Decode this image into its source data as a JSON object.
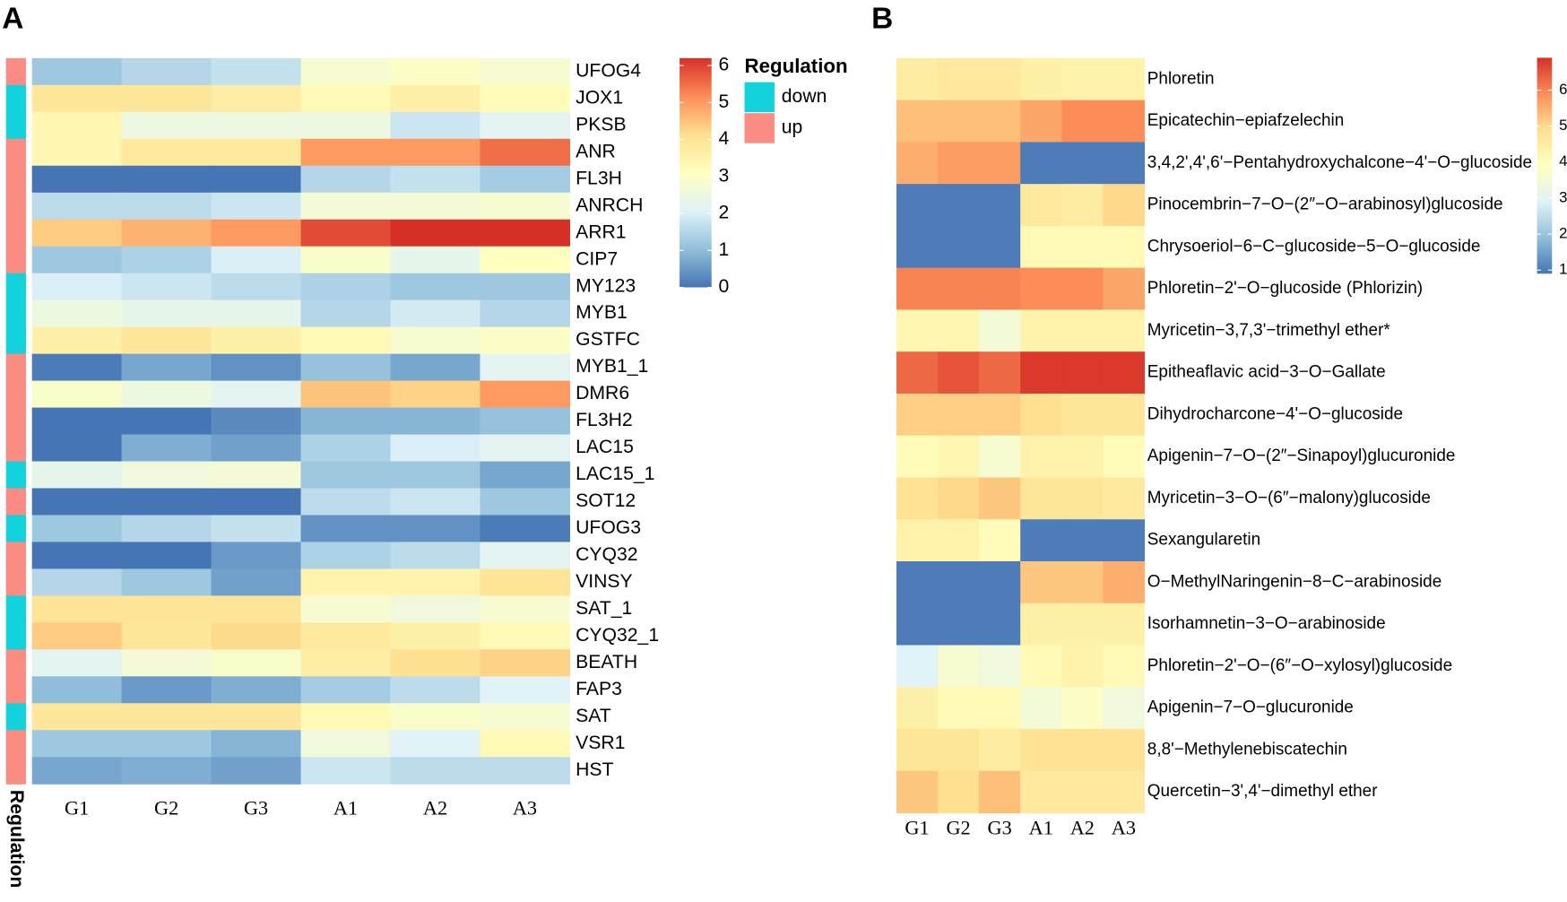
{
  "chart_data": [
    {
      "type": "heatmap",
      "panel": "A",
      "columns": [
        "G1",
        "G2",
        "G3",
        "A1",
        "A2",
        "A3"
      ],
      "rows": [
        "UFOG4",
        "JOX1",
        "PKSB",
        "ANR",
        "FL3H",
        "ANRCH",
        "ARR1",
        "CIP7",
        "MY123",
        "MYB1",
        "GSTFC",
        "MYB1_1",
        "DMR6",
        "FL3H2",
        "LAC15",
        "LAC15_1",
        "SOT12",
        "UFOG3",
        "CYQ32",
        "VINSY",
        "SAT_1",
        "CYQ32_1",
        "BEATH",
        "FAP3",
        "SAT",
        "VSR1",
        "HST"
      ],
      "values": [
        [
          1.2,
          1.5,
          1.7,
          2.8,
          3.0,
          2.8
        ],
        [
          3.9,
          3.9,
          3.7,
          3.3,
          3.6,
          3.2
        ],
        [
          3.4,
          2.5,
          2.5,
          2.5,
          1.8,
          2.2
        ],
        [
          3.4,
          3.8,
          3.8,
          5.0,
          5.0,
          5.5
        ],
        [
          0.0,
          0.0,
          0.0,
          1.5,
          1.7,
          1.3
        ],
        [
          1.6,
          1.6,
          1.8,
          2.7,
          2.7,
          2.8
        ],
        [
          4.4,
          4.7,
          5.0,
          5.9,
          6.2,
          6.2
        ],
        [
          1.2,
          1.4,
          2.0,
          2.9,
          2.3,
          3.1
        ],
        [
          2.0,
          1.8,
          1.6,
          1.4,
          1.2,
          1.2
        ],
        [
          2.5,
          2.3,
          2.3,
          1.5,
          1.9,
          1.5
        ],
        [
          3.6,
          3.9,
          3.6,
          3.3,
          2.8,
          3.0
        ],
        [
          0.1,
          0.7,
          0.4,
          1.1,
          0.7,
          2.2
        ],
        [
          2.9,
          2.5,
          2.2,
          4.5,
          4.3,
          5.0
        ],
        [
          0.0,
          0.0,
          0.3,
          0.9,
          0.9,
          1.1
        ],
        [
          0.0,
          0.8,
          0.6,
          1.4,
          2.0,
          2.2
        ],
        [
          2.3,
          2.6,
          2.7,
          1.2,
          1.2,
          0.7
        ],
        [
          0.0,
          0.0,
          0.0,
          1.6,
          1.8,
          1.2
        ],
        [
          1.2,
          1.5,
          1.7,
          0.4,
          0.4,
          0.1
        ],
        [
          0.0,
          0.0,
          0.5,
          1.4,
          1.6,
          2.2
        ],
        [
          1.5,
          1.2,
          0.6,
          3.5,
          3.5,
          4.0
        ],
        [
          4.0,
          4.0,
          4.0,
          2.8,
          2.6,
          2.8
        ],
        [
          4.4,
          3.9,
          4.2,
          3.8,
          3.6,
          3.3
        ],
        [
          2.2,
          2.7,
          2.9,
          3.7,
          4.1,
          4.3
        ],
        [
          1.0,
          0.5,
          0.8,
          1.3,
          1.6,
          2.1
        ],
        [
          3.9,
          3.9,
          3.9,
          3.3,
          2.9,
          2.8
        ],
        [
          1.2,
          1.2,
          0.9,
          2.6,
          2.1,
          3.3
        ],
        [
          0.7,
          0.8,
          0.6,
          1.8,
          1.6,
          1.6
        ]
      ],
      "annotation_title": "Regulation",
      "annotation": [
        "up",
        "down",
        "down",
        "up",
        "up",
        "up",
        "up",
        "up",
        "down",
        "down",
        "down",
        "up",
        "up",
        "up",
        "up",
        "down",
        "up",
        "down",
        "up",
        "up",
        "down",
        "down",
        "up",
        "up",
        "down",
        "up",
        "up"
      ],
      "annotation_levels": [
        {
          "name": "down",
          "color": "#14d2dc"
        },
        {
          "name": "up",
          "color": "#fa8c84"
        }
      ],
      "colors": [
        "#4575b4",
        "#91bfdb",
        "#e0f3f8",
        "#ffffbf",
        "#fee090",
        "#fc8d59",
        "#d73027"
      ],
      "colorbar_lim": [
        0,
        6.2
      ],
      "colorbar_ticks": [
        0,
        1,
        2,
        3,
        4,
        5,
        6
      ]
    },
    {
      "type": "heatmap",
      "panel": "B",
      "columns": [
        "G1",
        "G2",
        "G3",
        "A1",
        "A2",
        "A3"
      ],
      "rows": [
        "Phloretin",
        "Epicatechin−epiafzelechin",
        "3,4,2',4',6'−Pentahydroxychalcone−4'−O−glucoside",
        "Pinocembrin−7−O−(2″−O−arabinosyl)glucoside",
        "Chrysoeriol−6−C−glucoside−5−O−glucoside",
        "Phloretin−2'−O−glucoside (Phlorizin)",
        "Myricetin−3,7,3'−trimethyl ether*",
        "Epitheaflavic acid−3−O−Gallate",
        "Dihydrocharcone−4'−O−glucoside",
        "Apigenin−7−O−(2″−Sinapoyl)glucuronide",
        "Myricetin−3−O−(6″−malony)glucoside",
        "Sexangularetin",
        "O−MethylNaringenin−8−C−arabinoside",
        "Isorhamnetin−3−O−arabinoside",
        "Phloretin−2'−O−(6″−O−xylosyl)glucoside",
        "Apigenin−7−O−glucuronide",
        "8,8'−Methylenebiscatechin",
        "Quercetin−3',4'−dimethyl ether"
      ],
      "values": [
        [
          4.5,
          4.6,
          4.6,
          4.4,
          4.3,
          4.3
        ],
        [
          5.3,
          5.3,
          5.3,
          5.6,
          5.9,
          5.9
        ],
        [
          5.5,
          5.7,
          5.7,
          1.0,
          1.0,
          1.0
        ],
        [
          1.0,
          1.0,
          1.0,
          4.6,
          4.5,
          5.0
        ],
        [
          1.0,
          1.0,
          1.0,
          4.1,
          4.1,
          4.1
        ],
        [
          6.0,
          6.0,
          6.0,
          5.9,
          5.9,
          5.6
        ],
        [
          4.2,
          4.2,
          3.5,
          4.3,
          4.3,
          4.3
        ],
        [
          6.3,
          6.5,
          6.3,
          6.8,
          6.8,
          6.8
        ],
        [
          5.1,
          5.1,
          5.1,
          4.9,
          4.7,
          4.7
        ],
        [
          4.0,
          4.2,
          3.6,
          4.3,
          4.3,
          4.0
        ],
        [
          4.8,
          5.0,
          5.2,
          4.7,
          4.7,
          4.6
        ],
        [
          4.3,
          4.3,
          4.0,
          1.0,
          1.0,
          1.0
        ],
        [
          1.0,
          1.0,
          1.0,
          5.2,
          5.2,
          5.5
        ],
        [
          1.0,
          1.0,
          1.0,
          4.4,
          4.4,
          4.4
        ],
        [
          2.9,
          3.6,
          3.4,
          4.1,
          4.3,
          4.1
        ],
        [
          4.4,
          4.1,
          4.1,
          3.5,
          3.8,
          3.4
        ],
        [
          4.7,
          4.7,
          4.5,
          4.8,
          4.8,
          4.8
        ],
        [
          5.2,
          4.9,
          5.3,
          4.6,
          4.6,
          4.6
        ]
      ],
      "colors": [
        "#4575b4",
        "#91bfdb",
        "#e0f3f8",
        "#ffffbf",
        "#fee090",
        "#fc8d59",
        "#d73027"
      ],
      "colorbar_lim": [
        0.9,
        6.9
      ],
      "colorbar_ticks": [
        1,
        2,
        3,
        4,
        5,
        6
      ]
    }
  ]
}
